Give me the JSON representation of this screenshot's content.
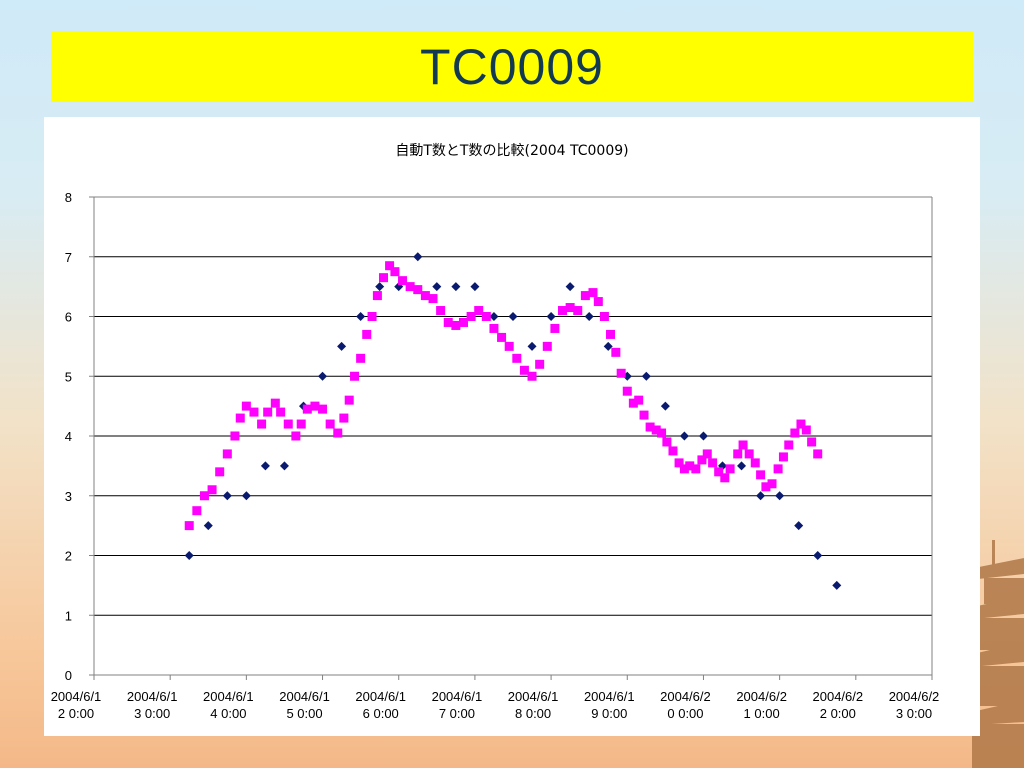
{
  "slide": {
    "title": "TC0009",
    "colors": {
      "title_bar": "#ffff00",
      "title_text": "#123a52"
    }
  },
  "chart_data": {
    "type": "scatter",
    "title": "自動T数とT数の比較(2004 TC0009)",
    "xlabel": "",
    "ylabel": "",
    "ylim": [
      0,
      8
    ],
    "yticks": [
      "0",
      "1",
      "2",
      "3",
      "4",
      "5",
      "6",
      "7",
      "8"
    ],
    "xticks": [
      [
        "2004/6/1",
        "2 0:00"
      ],
      [
        "2004/6/1",
        "3 0:00"
      ],
      [
        "2004/6/1",
        "4 0:00"
      ],
      [
        "2004/6/1",
        "5 0:00"
      ],
      [
        "2004/6/1",
        "6 0:00"
      ],
      [
        "2004/6/1",
        "7 0:00"
      ],
      [
        "2004/6/1",
        "8 0:00"
      ],
      [
        "2004/6/1",
        "9 0:00"
      ],
      [
        "2004/6/2",
        "0 0:00"
      ],
      [
        "2004/6/2",
        "1 0:00"
      ],
      [
        "2004/6/2",
        "2 0:00"
      ],
      [
        "2004/6/2",
        "3 0:00"
      ]
    ],
    "grid": true,
    "legend": "none",
    "series": [
      {
        "marker": "diamond",
        "color": "#0a1a6e",
        "x_unit": "days since 2004-06-12 00:00",
        "points": [
          [
            1.25,
            2.0
          ],
          [
            1.5,
            2.5
          ],
          [
            1.75,
            3.0
          ],
          [
            2.0,
            3.0
          ],
          [
            2.25,
            3.5
          ],
          [
            2.5,
            3.5
          ],
          [
            2.75,
            4.5
          ],
          [
            3.0,
            5.0
          ],
          [
            3.25,
            5.5
          ],
          [
            3.5,
            6.0
          ],
          [
            3.75,
            6.5
          ],
          [
            4.0,
            6.5
          ],
          [
            4.25,
            7.0
          ],
          [
            4.5,
            6.5
          ],
          [
            4.75,
            6.5
          ],
          [
            5.0,
            6.5
          ],
          [
            5.25,
            6.0
          ],
          [
            5.5,
            6.0
          ],
          [
            5.75,
            5.5
          ],
          [
            6.0,
            6.0
          ],
          [
            6.25,
            6.5
          ],
          [
            6.5,
            6.0
          ],
          [
            6.75,
            5.5
          ],
          [
            7.0,
            5.0
          ],
          [
            7.25,
            5.0
          ],
          [
            7.5,
            4.5
          ],
          [
            7.75,
            4.0
          ],
          [
            8.0,
            4.0
          ],
          [
            8.25,
            3.5
          ],
          [
            8.5,
            3.5
          ],
          [
            8.75,
            3.0
          ],
          [
            9.0,
            3.0
          ],
          [
            9.25,
            2.5
          ],
          [
            9.5,
            2.0
          ],
          [
            9.75,
            1.5
          ]
        ]
      },
      {
        "marker": "square",
        "color": "#ff00ff",
        "x_unit": "days since 2004-06-12 00:00",
        "points": [
          [
            1.25,
            2.5
          ],
          [
            1.35,
            2.75
          ],
          [
            1.45,
            3.0
          ],
          [
            1.55,
            3.1
          ],
          [
            1.65,
            3.4
          ],
          [
            1.75,
            3.7
          ],
          [
            1.85,
            4.0
          ],
          [
            1.92,
            4.3
          ],
          [
            2.0,
            4.5
          ],
          [
            2.1,
            4.4
          ],
          [
            2.2,
            4.2
          ],
          [
            2.28,
            4.4
          ],
          [
            2.38,
            4.55
          ],
          [
            2.45,
            4.4
          ],
          [
            2.55,
            4.2
          ],
          [
            2.65,
            4.0
          ],
          [
            2.72,
            4.2
          ],
          [
            2.8,
            4.45
          ],
          [
            2.9,
            4.5
          ],
          [
            3.0,
            4.45
          ],
          [
            3.1,
            4.2
          ],
          [
            3.2,
            4.05
          ],
          [
            3.28,
            4.3
          ],
          [
            3.35,
            4.6
          ],
          [
            3.42,
            5.0
          ],
          [
            3.5,
            5.3
          ],
          [
            3.58,
            5.7
          ],
          [
            3.65,
            6.0
          ],
          [
            3.72,
            6.35
          ],
          [
            3.8,
            6.65
          ],
          [
            3.88,
            6.85
          ],
          [
            3.95,
            6.75
          ],
          [
            4.05,
            6.6
          ],
          [
            4.15,
            6.5
          ],
          [
            4.25,
            6.45
          ],
          [
            4.35,
            6.35
          ],
          [
            4.45,
            6.3
          ],
          [
            4.55,
            6.1
          ],
          [
            4.65,
            5.9
          ],
          [
            4.75,
            5.85
          ],
          [
            4.85,
            5.9
          ],
          [
            4.95,
            6.0
          ],
          [
            5.05,
            6.1
          ],
          [
            5.15,
            6.0
          ],
          [
            5.25,
            5.8
          ],
          [
            5.35,
            5.65
          ],
          [
            5.45,
            5.5
          ],
          [
            5.55,
            5.3
          ],
          [
            5.65,
            5.1
          ],
          [
            5.75,
            5.0
          ],
          [
            5.85,
            5.2
          ],
          [
            5.95,
            5.5
          ],
          [
            6.05,
            5.8
          ],
          [
            6.15,
            6.1
          ],
          [
            6.25,
            6.15
          ],
          [
            6.35,
            6.1
          ],
          [
            6.45,
            6.35
          ],
          [
            6.55,
            6.4
          ],
          [
            6.62,
            6.25
          ],
          [
            6.7,
            6.0
          ],
          [
            6.78,
            5.7
          ],
          [
            6.85,
            5.4
          ],
          [
            6.92,
            5.05
          ],
          [
            7.0,
            4.75
          ],
          [
            7.08,
            4.55
          ],
          [
            7.15,
            4.6
          ],
          [
            7.22,
            4.35
          ],
          [
            7.3,
            4.15
          ],
          [
            7.38,
            4.1
          ],
          [
            7.45,
            4.05
          ],
          [
            7.52,
            3.9
          ],
          [
            7.6,
            3.75
          ],
          [
            7.68,
            3.55
          ],
          [
            7.75,
            3.45
          ],
          [
            7.82,
            3.5
          ],
          [
            7.9,
            3.45
          ],
          [
            7.98,
            3.6
          ],
          [
            8.05,
            3.7
          ],
          [
            8.12,
            3.55
          ],
          [
            8.2,
            3.4
          ],
          [
            8.28,
            3.3
          ],
          [
            8.35,
            3.45
          ],
          [
            8.45,
            3.7
          ],
          [
            8.52,
            3.85
          ],
          [
            8.6,
            3.7
          ],
          [
            8.68,
            3.55
          ],
          [
            8.75,
            3.35
          ],
          [
            8.82,
            3.15
          ],
          [
            8.9,
            3.2
          ],
          [
            8.98,
            3.45
          ],
          [
            9.05,
            3.65
          ],
          [
            9.12,
            3.85
          ],
          [
            9.2,
            4.05
          ],
          [
            9.28,
            4.2
          ],
          [
            9.35,
            4.1
          ],
          [
            9.42,
            3.9
          ],
          [
            9.5,
            3.7
          ]
        ]
      }
    ]
  }
}
